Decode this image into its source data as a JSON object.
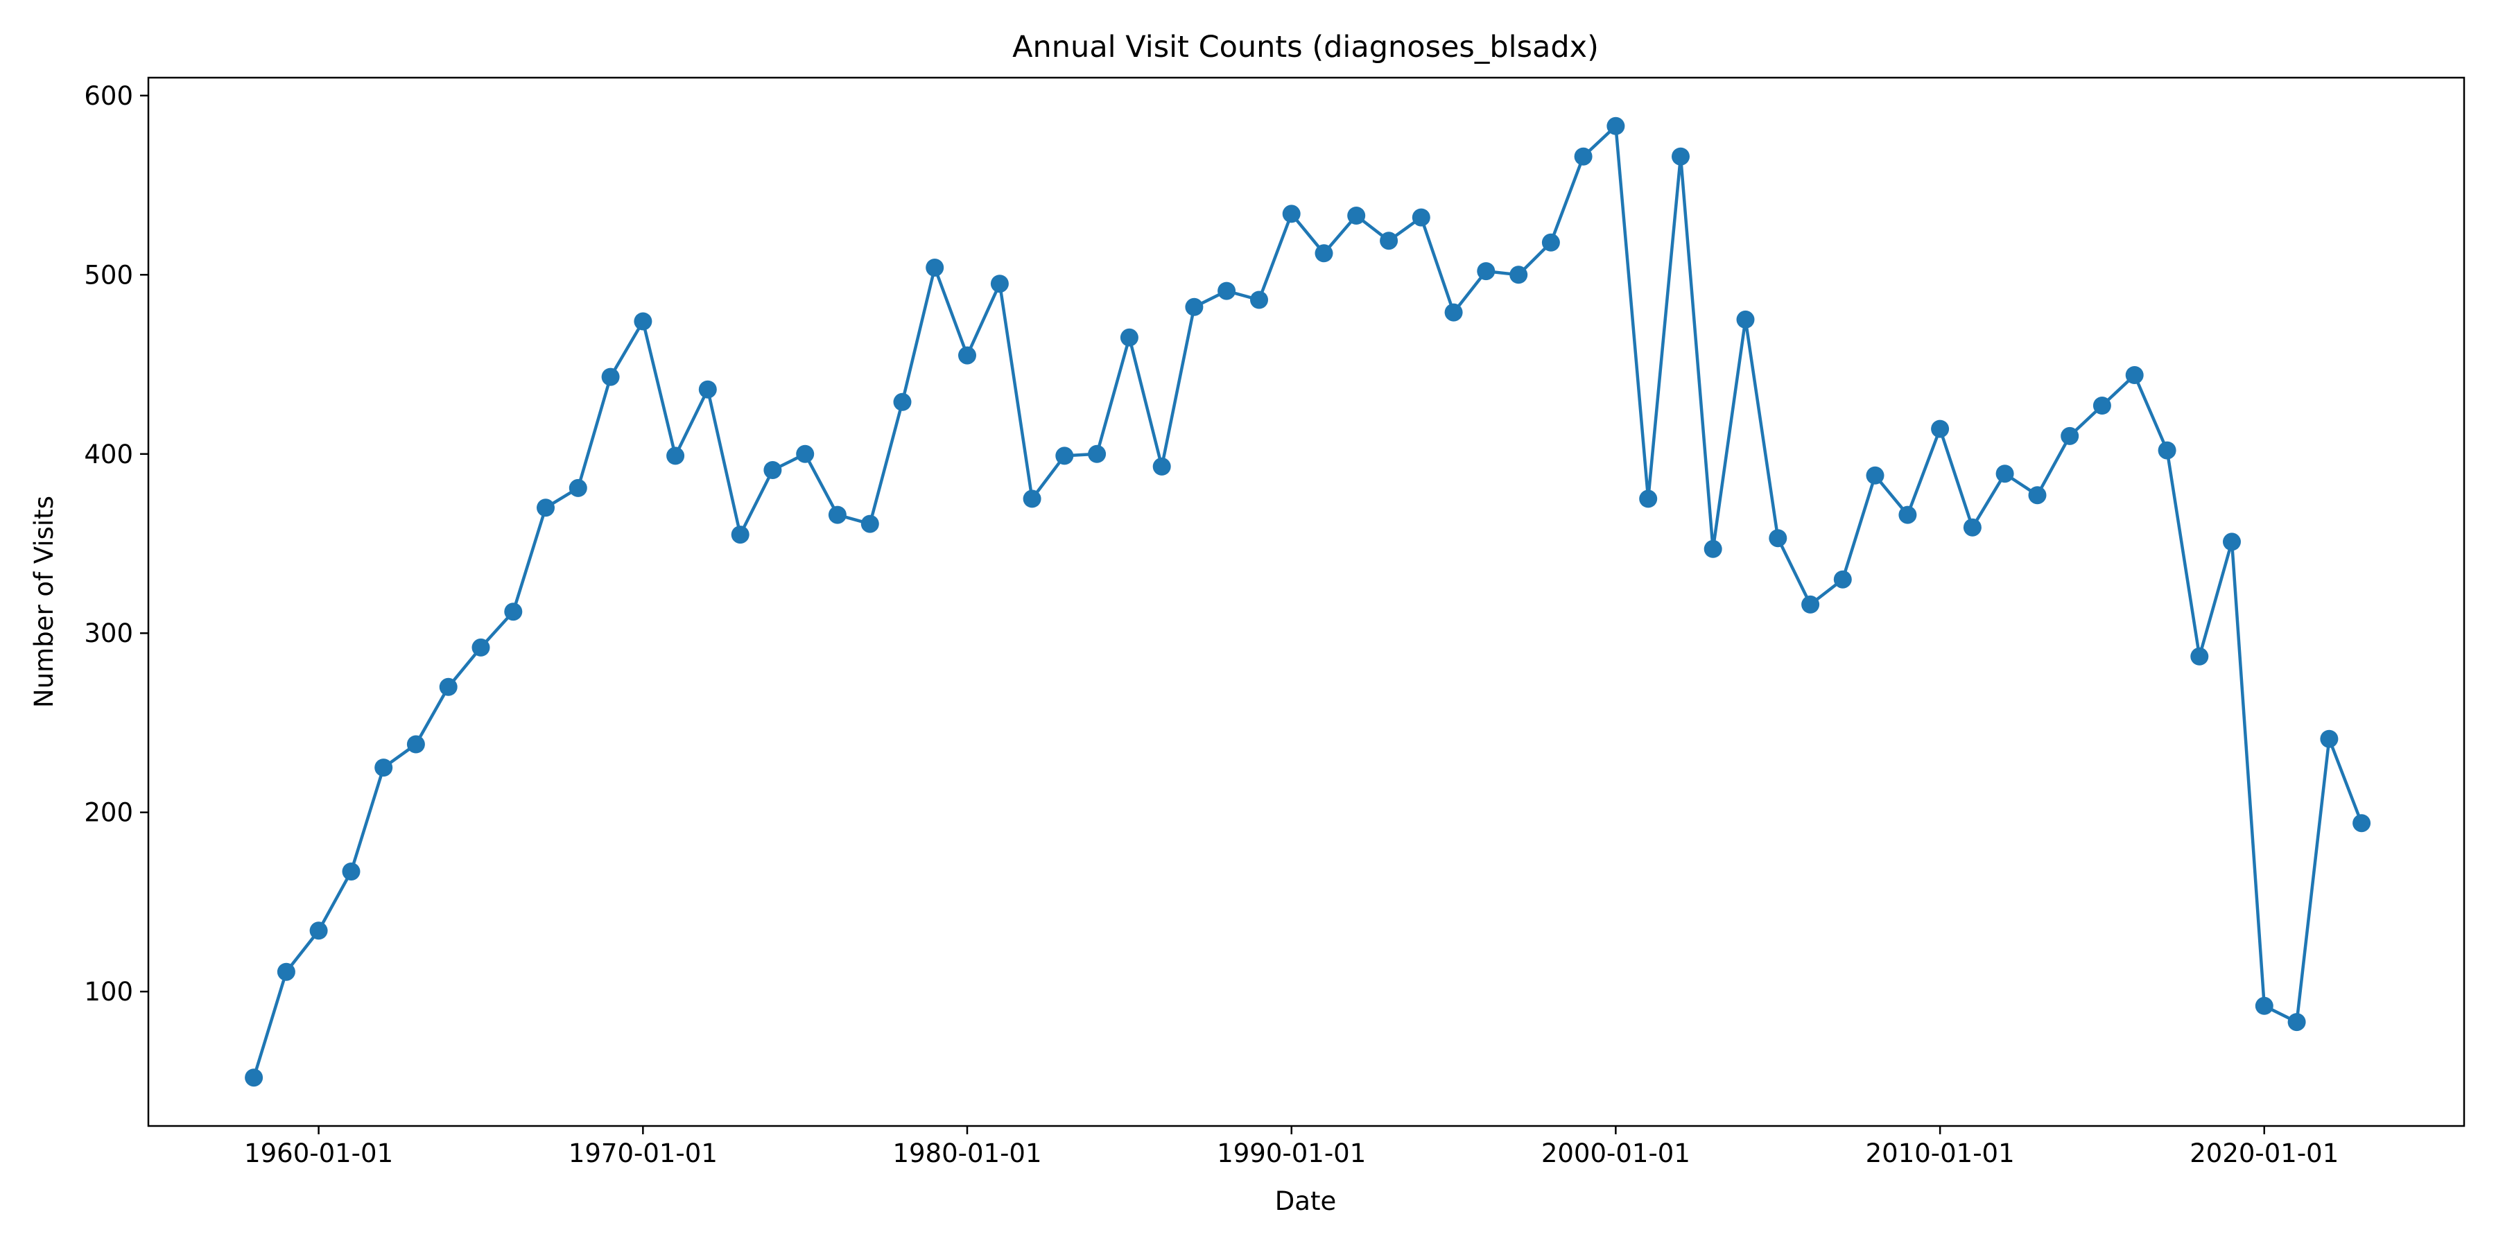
{
  "chart_data": {
    "type": "line",
    "title": "Annual Visit Counts (diagnoses_blsadx)",
    "xlabel": "Date",
    "ylabel": "Number of Visits",
    "x_tick_labels": [
      "1960-01-01",
      "1970-01-01",
      "1980-01-01",
      "1990-01-01",
      "2000-01-01",
      "2010-01-01",
      "2020-01-01"
    ],
    "y_tick_labels": [
      "100",
      "200",
      "300",
      "400",
      "500",
      "600"
    ],
    "xlim": [
      "1954-10-01",
      "2026-03-01"
    ],
    "ylim": [
      25,
      610
    ],
    "grid": false,
    "legend": "none",
    "color": "#1f77b4",
    "marker": "circle",
    "x": [
      "1958-01-01",
      "1959-01-01",
      "1960-01-01",
      "1961-01-01",
      "1962-01-01",
      "1963-01-01",
      "1964-01-01",
      "1965-01-01",
      "1966-01-01",
      "1967-01-01",
      "1968-01-01",
      "1969-01-01",
      "1970-01-01",
      "1971-01-01",
      "1972-01-01",
      "1973-01-01",
      "1974-01-01",
      "1975-01-01",
      "1976-01-01",
      "1977-01-01",
      "1978-01-01",
      "1979-01-01",
      "1980-01-01",
      "1981-01-01",
      "1982-01-01",
      "1983-01-01",
      "1984-01-01",
      "1985-01-01",
      "1986-01-01",
      "1987-01-01",
      "1988-01-01",
      "1989-01-01",
      "1990-01-01",
      "1991-01-01",
      "1992-01-01",
      "1993-01-01",
      "1994-01-01",
      "1995-01-01",
      "1996-01-01",
      "1997-01-01",
      "1998-01-01",
      "1999-01-01",
      "2000-01-01",
      "2001-01-01",
      "2002-01-01",
      "2003-01-01",
      "2004-01-01",
      "2005-01-01",
      "2006-01-01",
      "2007-01-01",
      "2008-01-01",
      "2009-01-01",
      "2010-01-01",
      "2011-01-01",
      "2012-01-01",
      "2013-01-01",
      "2014-01-01",
      "2015-01-01",
      "2016-01-01",
      "2017-01-01",
      "2018-01-01",
      "2019-01-01",
      "2020-01-01",
      "2021-01-01",
      "2022-01-01",
      "2023-01-01"
    ],
    "values": [
      52,
      111,
      134,
      167,
      225,
      238,
      270,
      292,
      312,
      370,
      381,
      443,
      474,
      399,
      436,
      355,
      391,
      400,
      366,
      361,
      429,
      504,
      455,
      495,
      375,
      399,
      400,
      465,
      393,
      482,
      491,
      486,
      534,
      512,
      533,
      519,
      532,
      479,
      502,
      500,
      518,
      566,
      583,
      375,
      566,
      347,
      475,
      353,
      316,
      330,
      388,
      366,
      414,
      359,
      389,
      377,
      410,
      427,
      444,
      402,
      287,
      351,
      92,
      83,
      241,
      194
    ]
  }
}
